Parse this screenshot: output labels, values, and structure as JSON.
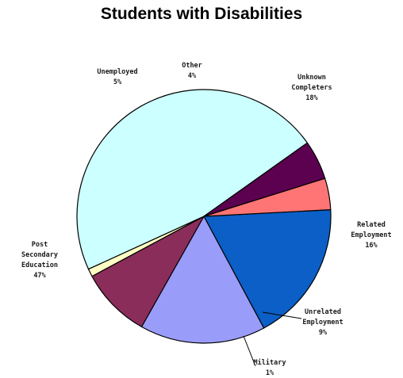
{
  "chart_data": {
    "type": "pie",
    "title": "Students with Disabilities",
    "slices": [
      {
        "label": [
          "Unknown",
          "Completers"
        ],
        "pct_text": "18%",
        "value": 18,
        "color": "#0b5fc6"
      },
      {
        "label": [
          "Related",
          "Employment"
        ],
        "pct_text": "16%",
        "value": 16,
        "color": "#9a9cf9"
      },
      {
        "label": [
          "Unrelated",
          "Employment"
        ],
        "pct_text": "9%",
        "value": 9,
        "color": "#8b2d5a"
      },
      {
        "label": [
          "Military"
        ],
        "pct_text": "1%",
        "value": 1,
        "color": "#fffcc4"
      },
      {
        "label": [
          "Post",
          "Secondary",
          "Education"
        ],
        "pct_text": "47%",
        "value": 47,
        "color": "#ccffff"
      },
      {
        "label": [
          "Unemployed"
        ],
        "pct_text": "5%",
        "value": 5,
        "color": "#5c0050"
      },
      {
        "label": [
          "Other"
        ],
        "pct_text": "4%",
        "value": 4,
        "color": "#ff7575"
      }
    ],
    "grid": false,
    "legend": "none"
  }
}
